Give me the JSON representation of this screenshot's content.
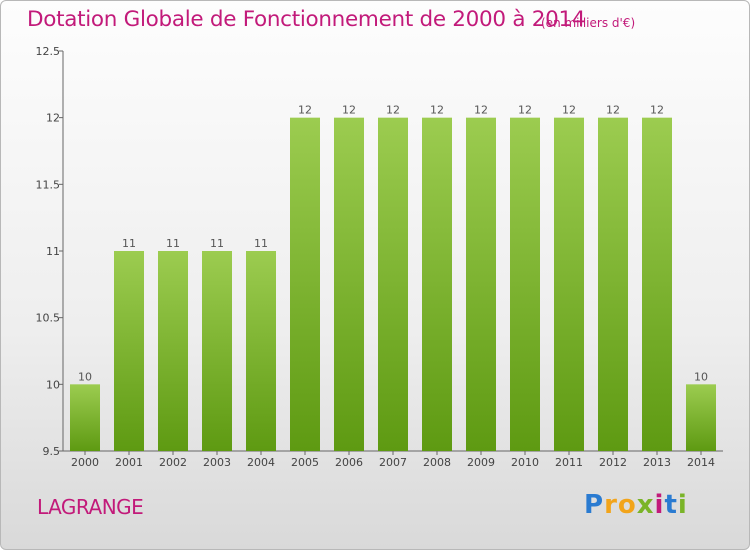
{
  "title": "Dotation Globale de Fonctionnement de 2000 à 2014",
  "subtitle": "(en milliers d'€)",
  "commune": "LAGRANGE",
  "logo": {
    "letters": [
      "P",
      "r",
      "o",
      "x",
      "i",
      "t",
      "i"
    ],
    "colors": [
      "#2a7bd1",
      "#f2a41a",
      "#f2a41a",
      "#7ab428",
      "#c21a7a",
      "#2a7bd1",
      "#7ab428"
    ]
  },
  "colors": {
    "bar_top": "#9ccc50",
    "bar_bottom": "#5e9a12",
    "title": "#c21a7a"
  },
  "chart_data": {
    "type": "bar",
    "categories": [
      "2000",
      "2001",
      "2002",
      "2003",
      "2004",
      "2005",
      "2006",
      "2007",
      "2008",
      "2009",
      "2010",
      "2011",
      "2012",
      "2013",
      "2014"
    ],
    "values": [
      10,
      11,
      11,
      11,
      11,
      12,
      12,
      12,
      12,
      12,
      12,
      12,
      12,
      12,
      10
    ],
    "value_labels": [
      "10",
      "11",
      "11",
      "11",
      "11",
      "12",
      "12",
      "12",
      "12",
      "12",
      "12",
      "12",
      "12",
      "12",
      "10"
    ],
    "ylim": [
      9.5,
      12.5
    ],
    "yticks": [
      9.5,
      10,
      10.5,
      11,
      11.5,
      12,
      12.5
    ],
    "ytick_labels": [
      "9.5",
      "10",
      "10.5",
      "11",
      "11.5",
      "12",
      "12.5"
    ],
    "xlabel": "",
    "ylabel": "",
    "grid": false,
    "legend": "none"
  }
}
